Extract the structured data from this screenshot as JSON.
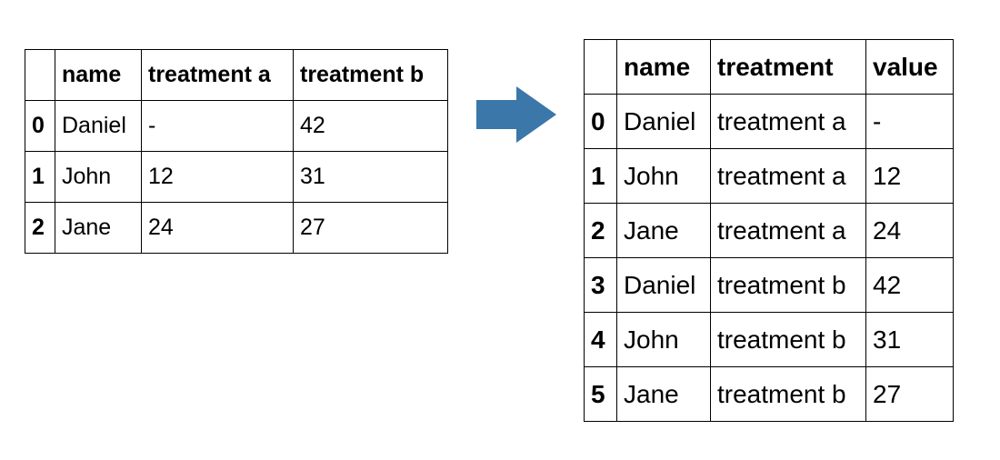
{
  "wide_table": {
    "headers": [
      "",
      "name",
      "treatment a",
      "treatment b"
    ],
    "rows": [
      [
        "0",
        "Daniel",
        "-",
        "42"
      ],
      [
        "1",
        "John",
        "12",
        "31"
      ],
      [
        "2",
        "Jane",
        "24",
        "27"
      ]
    ]
  },
  "arrow": {
    "icon": "right-arrow-icon",
    "color": "#3B77A8"
  },
  "long_table": {
    "headers": [
      "",
      "name",
      "treatment",
      "value"
    ],
    "rows": [
      [
        "0",
        "Daniel",
        "treatment a",
        "-"
      ],
      [
        "1",
        "John",
        "treatment a",
        "12"
      ],
      [
        "2",
        "Jane",
        "treatment a",
        "24"
      ],
      [
        "3",
        "Daniel",
        "treatment b",
        "42"
      ],
      [
        "4",
        "John",
        "treatment b",
        "31"
      ],
      [
        "5",
        "Jane",
        "treatment b",
        "27"
      ]
    ]
  }
}
